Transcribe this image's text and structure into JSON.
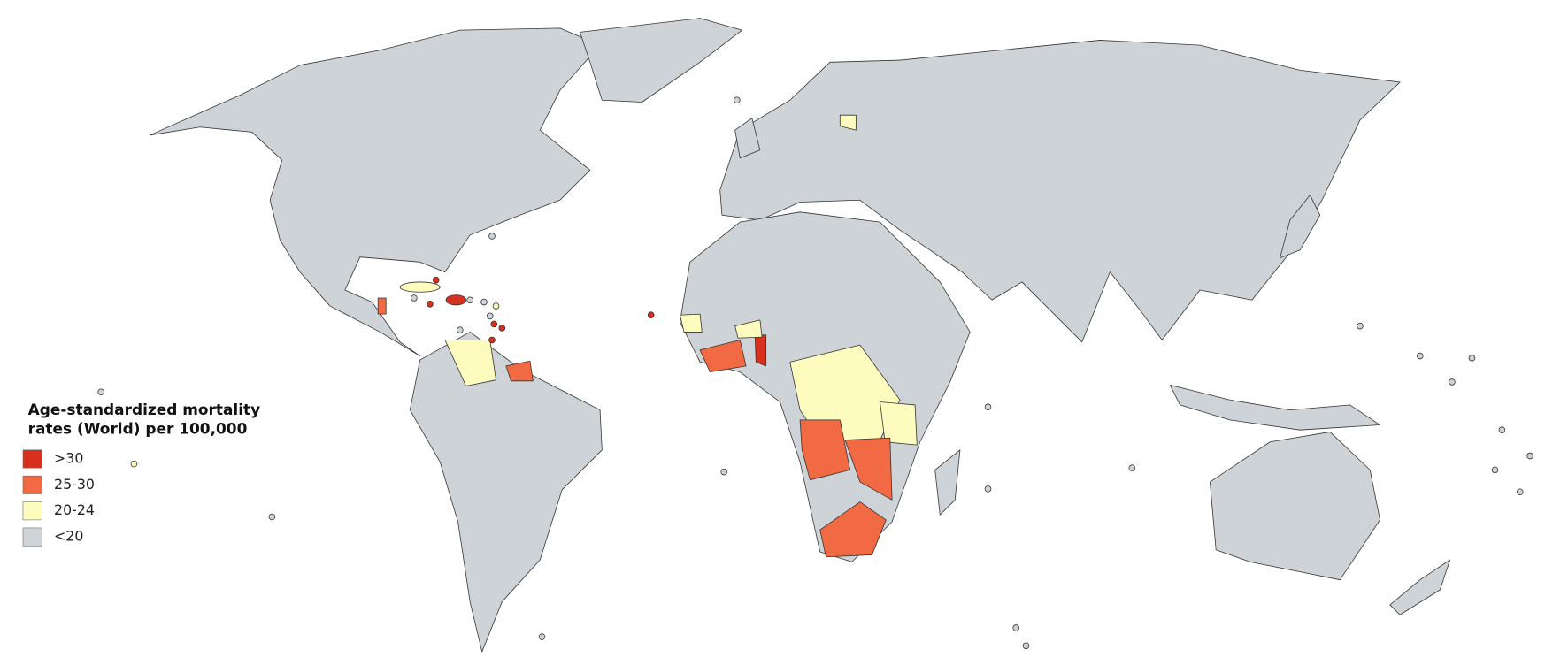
{
  "legend": {
    "title_lines": [
      "Age-standardized mortality",
      "rates (World) per 100,000"
    ],
    "items": [
      {
        "label": ">30",
        "color": "#d7301f"
      },
      {
        "label": "25-30",
        "color": "#f16a43"
      },
      {
        "label": "20-24",
        "color": "#fdfbbd"
      },
      {
        "label": "<20",
        "color": "#cdd3d6"
      }
    ]
  }
}
